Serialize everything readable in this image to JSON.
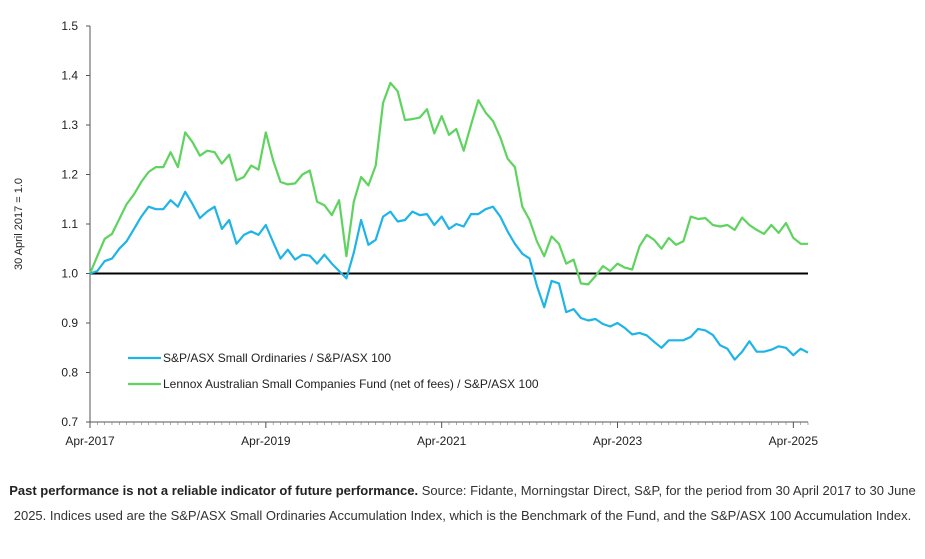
{
  "chart_data": {
    "type": "line",
    "ylabel": "30 April 2017 = 1.0",
    "ylim": [
      0.7,
      1.5
    ],
    "yticks": [
      "0.7",
      "0.8",
      "0.9",
      "1.0",
      "1.1",
      "1.2",
      "1.3",
      "1.4",
      "1.5"
    ],
    "xlim": [
      "2017-04",
      "2025-06"
    ],
    "xticks": [
      {
        "label": "Apr-2017",
        "t": "2017-04"
      },
      {
        "label": "Apr-2019",
        "t": "2019-04"
      },
      {
        "label": "Apr-2021",
        "t": "2021-04"
      },
      {
        "label": "Apr-2023",
        "t": "2023-04"
      },
      {
        "label": "Apr-2025",
        "t": "2025-04"
      }
    ],
    "baseline": 1.0,
    "grid": false,
    "legend_position": "lower-left",
    "series": [
      {
        "name": "S&P/ASX Small Ordinaries  / S&P/ASX 100",
        "color": "#1fb4e8",
        "points": [
          [
            "2017-04",
            1.0
          ],
          [
            "2017-05",
            1.005
          ],
          [
            "2017-06",
            1.025
          ],
          [
            "2017-07",
            1.03
          ],
          [
            "2017-08",
            1.05
          ],
          [
            "2017-09",
            1.065
          ],
          [
            "2017-10",
            1.09
          ],
          [
            "2017-11",
            1.115
          ],
          [
            "2017-12",
            1.135
          ],
          [
            "2018-01",
            1.13
          ],
          [
            "2018-02",
            1.13
          ],
          [
            "2018-03",
            1.148
          ],
          [
            "2018-04",
            1.135
          ],
          [
            "2018-05",
            1.165
          ],
          [
            "2018-06",
            1.14
          ],
          [
            "2018-07",
            1.112
          ],
          [
            "2018-08",
            1.125
          ],
          [
            "2018-09",
            1.135
          ],
          [
            "2018-10",
            1.09
          ],
          [
            "2018-11",
            1.108
          ],
          [
            "2018-12",
            1.06
          ],
          [
            "2019-01",
            1.078
          ],
          [
            "2019-02",
            1.085
          ],
          [
            "2019-03",
            1.078
          ],
          [
            "2019-04",
            1.098
          ],
          [
            "2019-05",
            1.063
          ],
          [
            "2019-06",
            1.03
          ],
          [
            "2019-07",
            1.048
          ],
          [
            "2019-08",
            1.028
          ],
          [
            "2019-09",
            1.038
          ],
          [
            "2019-10",
            1.036
          ],
          [
            "2019-11",
            1.02
          ],
          [
            "2019-12",
            1.038
          ],
          [
            "2020-01",
            1.02
          ],
          [
            "2020-02",
            1.005
          ],
          [
            "2020-03",
            0.99
          ],
          [
            "2020-04",
            1.042
          ],
          [
            "2020-05",
            1.108
          ],
          [
            "2020-06",
            1.058
          ],
          [
            "2020-07",
            1.068
          ],
          [
            "2020-08",
            1.115
          ],
          [
            "2020-09",
            1.125
          ],
          [
            "2020-10",
            1.105
          ],
          [
            "2020-11",
            1.108
          ],
          [
            "2020-12",
            1.125
          ],
          [
            "2021-01",
            1.118
          ],
          [
            "2021-02",
            1.12
          ],
          [
            "2021-03",
            1.098
          ],
          [
            "2021-04",
            1.115
          ],
          [
            "2021-05",
            1.09
          ],
          [
            "2021-06",
            1.1
          ],
          [
            "2021-07",
            1.095
          ],
          [
            "2021-08",
            1.12
          ],
          [
            "2021-09",
            1.12
          ],
          [
            "2021-10",
            1.13
          ],
          [
            "2021-11",
            1.135
          ],
          [
            "2021-12",
            1.115
          ],
          [
            "2022-01",
            1.085
          ],
          [
            "2022-02",
            1.06
          ],
          [
            "2022-03",
            1.04
          ],
          [
            "2022-04",
            1.03
          ],
          [
            "2022-05",
            0.975
          ],
          [
            "2022-06",
            0.932
          ],
          [
            "2022-07",
            0.985
          ],
          [
            "2022-08",
            0.98
          ],
          [
            "2022-09",
            0.922
          ],
          [
            "2022-10",
            0.928
          ],
          [
            "2022-11",
            0.91
          ],
          [
            "2022-12",
            0.905
          ],
          [
            "2023-01",
            0.908
          ],
          [
            "2023-02",
            0.898
          ],
          [
            "2023-03",
            0.893
          ],
          [
            "2023-04",
            0.9
          ],
          [
            "2023-05",
            0.89
          ],
          [
            "2023-06",
            0.877
          ],
          [
            "2023-07",
            0.88
          ],
          [
            "2023-08",
            0.875
          ],
          [
            "2023-09",
            0.862
          ],
          [
            "2023-10",
            0.85
          ],
          [
            "2023-11",
            0.865
          ],
          [
            "2023-12",
            0.865
          ],
          [
            "2024-01",
            0.865
          ],
          [
            "2024-02",
            0.872
          ],
          [
            "2024-03",
            0.888
          ],
          [
            "2024-04",
            0.885
          ],
          [
            "2024-05",
            0.876
          ],
          [
            "2024-06",
            0.855
          ],
          [
            "2024-07",
            0.848
          ],
          [
            "2024-08",
            0.826
          ],
          [
            "2024-09",
            0.842
          ],
          [
            "2024-10",
            0.863
          ],
          [
            "2024-11",
            0.842
          ],
          [
            "2024-12",
            0.842
          ],
          [
            "2025-01",
            0.846
          ],
          [
            "2025-02",
            0.853
          ],
          [
            "2025-03",
            0.85
          ],
          [
            "2025-04",
            0.835
          ],
          [
            "2025-05",
            0.848
          ],
          [
            "2025-06",
            0.84
          ]
        ]
      },
      {
        "name": "Lennox Australian Small Companies Fund (net of fees)  / S&P/ASX 100",
        "color": "#5fd35f",
        "points": [
          [
            "2017-04",
            1.0
          ],
          [
            "2017-05",
            1.035
          ],
          [
            "2017-06",
            1.07
          ],
          [
            "2017-07",
            1.08
          ],
          [
            "2017-08",
            1.11
          ],
          [
            "2017-09",
            1.14
          ],
          [
            "2017-10",
            1.16
          ],
          [
            "2017-11",
            1.185
          ],
          [
            "2017-12",
            1.205
          ],
          [
            "2018-01",
            1.215
          ],
          [
            "2018-02",
            1.215
          ],
          [
            "2018-03",
            1.245
          ],
          [
            "2018-04",
            1.215
          ],
          [
            "2018-05",
            1.285
          ],
          [
            "2018-06",
            1.265
          ],
          [
            "2018-07",
            1.238
          ],
          [
            "2018-08",
            1.248
          ],
          [
            "2018-09",
            1.245
          ],
          [
            "2018-10",
            1.222
          ],
          [
            "2018-11",
            1.24
          ],
          [
            "2018-12",
            1.188
          ],
          [
            "2019-01",
            1.195
          ],
          [
            "2019-02",
            1.218
          ],
          [
            "2019-03",
            1.21
          ],
          [
            "2019-04",
            1.285
          ],
          [
            "2019-05",
            1.228
          ],
          [
            "2019-06",
            1.185
          ],
          [
            "2019-07",
            1.18
          ],
          [
            "2019-08",
            1.182
          ],
          [
            "2019-09",
            1.2
          ],
          [
            "2019-10",
            1.208
          ],
          [
            "2019-11",
            1.145
          ],
          [
            "2019-12",
            1.138
          ],
          [
            "2020-01",
            1.118
          ],
          [
            "2020-02",
            1.148
          ],
          [
            "2020-03",
            1.035
          ],
          [
            "2020-04",
            1.145
          ],
          [
            "2020-05",
            1.195
          ],
          [
            "2020-06",
            1.178
          ],
          [
            "2020-07",
            1.218
          ],
          [
            "2020-08",
            1.345
          ],
          [
            "2020-09",
            1.385
          ],
          [
            "2020-10",
            1.368
          ],
          [
            "2020-11",
            1.31
          ],
          [
            "2020-12",
            1.312
          ],
          [
            "2021-01",
            1.315
          ],
          [
            "2021-02",
            1.332
          ],
          [
            "2021-03",
            1.283
          ],
          [
            "2021-04",
            1.318
          ],
          [
            "2021-05",
            1.28
          ],
          [
            "2021-06",
            1.292
          ],
          [
            "2021-07",
            1.248
          ],
          [
            "2021-08",
            1.3
          ],
          [
            "2021-09",
            1.35
          ],
          [
            "2021-10",
            1.325
          ],
          [
            "2021-11",
            1.308
          ],
          [
            "2021-12",
            1.275
          ],
          [
            "2022-01",
            1.232
          ],
          [
            "2022-02",
            1.215
          ],
          [
            "2022-03",
            1.135
          ],
          [
            "2022-04",
            1.108
          ],
          [
            "2022-05",
            1.065
          ],
          [
            "2022-06",
            1.035
          ],
          [
            "2022-07",
            1.075
          ],
          [
            "2022-08",
            1.06
          ],
          [
            "2022-09",
            1.02
          ],
          [
            "2022-10",
            1.028
          ],
          [
            "2022-11",
            0.98
          ],
          [
            "2022-12",
            0.978
          ],
          [
            "2023-01",
            0.995
          ],
          [
            "2023-02",
            1.015
          ],
          [
            "2023-03",
            1.005
          ],
          [
            "2023-04",
            1.02
          ],
          [
            "2023-05",
            1.012
          ],
          [
            "2023-06",
            1.008
          ],
          [
            "2023-07",
            1.055
          ],
          [
            "2023-08",
            1.078
          ],
          [
            "2023-09",
            1.068
          ],
          [
            "2023-10",
            1.05
          ],
          [
            "2023-11",
            1.072
          ],
          [
            "2023-12",
            1.058
          ],
          [
            "2024-01",
            1.065
          ],
          [
            "2024-02",
            1.115
          ],
          [
            "2024-03",
            1.11
          ],
          [
            "2024-04",
            1.112
          ],
          [
            "2024-05",
            1.098
          ],
          [
            "2024-06",
            1.095
          ],
          [
            "2024-07",
            1.098
          ],
          [
            "2024-08",
            1.088
          ],
          [
            "2024-09",
            1.113
          ],
          [
            "2024-10",
            1.098
          ],
          [
            "2024-11",
            1.088
          ],
          [
            "2024-12",
            1.08
          ],
          [
            "2025-01",
            1.098
          ],
          [
            "2025-02",
            1.082
          ],
          [
            "2025-03",
            1.102
          ],
          [
            "2025-04",
            1.072
          ],
          [
            "2025-05",
            1.06
          ],
          [
            "2025-06",
            1.06
          ]
        ]
      }
    ]
  },
  "caption": {
    "bold": "Past performance is not a reliable indicator of future performance.",
    "text": "Source: Fidante, Morningstar Direct, S&P, for the period from 30 April 2017 to 30 June 2025. Indices used are the S&P/ASX Small Ordinaries Accumulation Index, which is the Benchmark of the Fund, and the S&P/ASX 100 Accumulation Index."
  }
}
